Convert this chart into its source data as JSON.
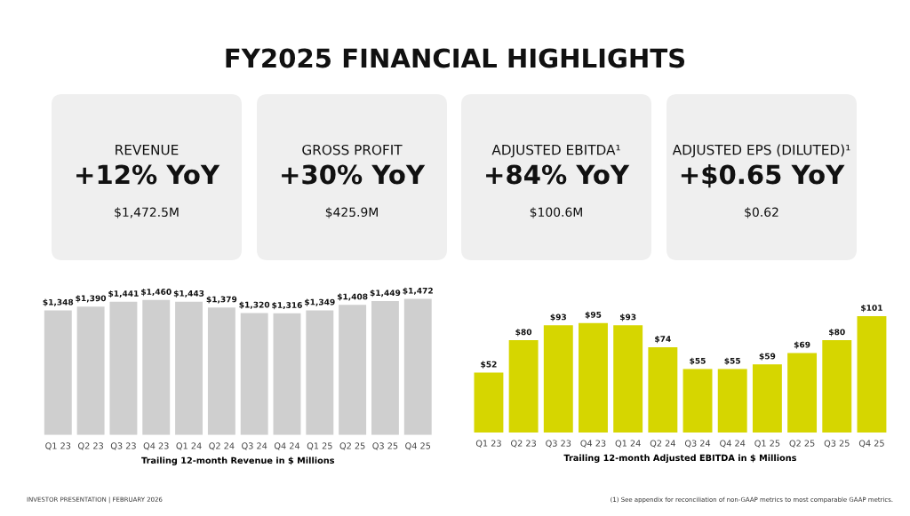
{
  "chart_data": [
    {
      "type": "other",
      "title": "FY2025 FINANCIAL HIGHLIGHTS",
      "annotations": [
        "REVENUE",
        "+12% YoY",
        "$1,472.5M",
        "GROSS PROFIT",
        "+30% YoY",
        "$425.9M",
        "ADJUSTED EBITDA¹",
        "+84% YoY",
        "$100.6M",
        "ADJUSTED EPS (DILUTED)¹",
        "+$0.65 YoY",
        "$0.62",
        "INVESTOR PRESENTATION | FEBRUARY 2026",
        "(1) See appendix for reconciliation of non-GAAP metrics to most comparable GAAP metrics."
      ]
    },
    {
      "type": "bar",
      "xlabel": "Trailing 12-month Revenue in $ Millions",
      "categories": [
        "Q1 23",
        "Q2 23",
        "Q3 23",
        "Q4 23",
        "Q1 24",
        "Q2 24",
        "Q3 24",
        "Q4 24",
        "Q1 25",
        "Q2 25",
        "Q3 25",
        "Q4 25"
      ],
      "values": [
        1348,
        1390,
        1441,
        1460,
        1443,
        1379,
        1320,
        1316,
        1349,
        1408,
        1449,
        1472
      ],
      "value_labels": [
        "$1,348",
        "$1,390",
        "$1,441",
        "$1,460",
        "$1,443",
        "$1,379",
        "$1,320",
        "$1,316",
        "$1,349",
        "$1,408",
        "$1,449",
        "$1,472"
      ],
      "color": "#cfcfcf"
    },
    {
      "type": "bar",
      "xlabel": "Trailing 12-month Adjusted EBITDA in $ Millions",
      "categories": [
        "Q1 23",
        "Q2 23",
        "Q3 23",
        "Q4 23",
        "Q1 24",
        "Q2 24",
        "Q3 24",
        "Q4 24",
        "Q1 25",
        "Q2 25",
        "Q3 25",
        "Q4 25"
      ],
      "values": [
        52,
        80,
        93,
        95,
        93,
        74,
        55,
        55,
        59,
        69,
        80,
        101
      ],
      "value_labels": [
        "$52",
        "$80",
        "$93",
        "$95",
        "$93",
        "$74",
        "$55",
        "$55",
        "$59",
        "$69",
        "$80",
        "$101"
      ],
      "color": "#d6d600"
    }
  ]
}
